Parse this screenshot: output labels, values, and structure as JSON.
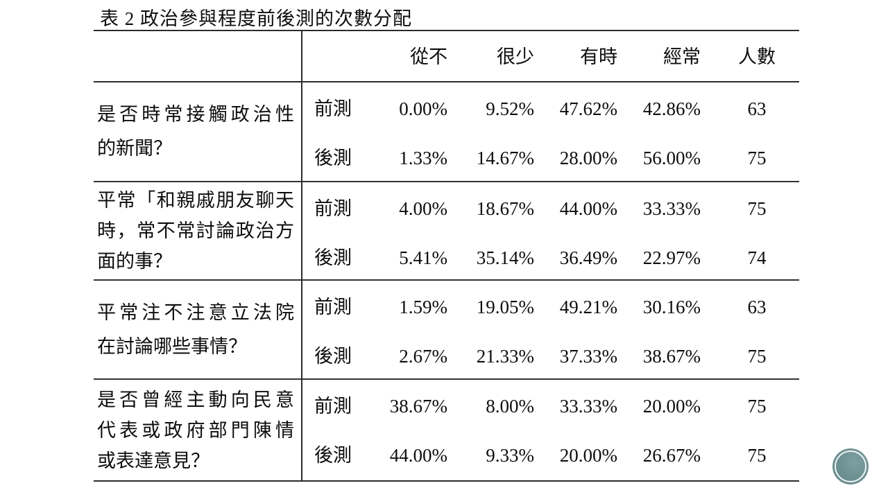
{
  "title": "表 2 政治參與程度前後測的次數分配",
  "table": {
    "columns": [
      "從不",
      "很少",
      "有時",
      "經常",
      "人數"
    ],
    "rows": [
      {
        "question": "是否時常接觸政治性的新聞？",
        "lines": [
          "是否時常接觸政治性",
          "的新聞？"
        ],
        "tests": [
          {
            "label": "前測",
            "values": [
              "0.00%",
              "9.52%",
              "47.62%",
              "42.86%"
            ],
            "count": "63"
          },
          {
            "label": "後測",
            "values": [
              "1.33%",
              "14.67%",
              "28.00%",
              "56.00%"
            ],
            "count": "75"
          }
        ]
      },
      {
        "question": "平常「和親戚朋友聊天時，常不常討論政治方面的事？",
        "lines": [
          "平常「和親戚朋友聊天",
          "時，常不常討論政治方",
          "面的事？"
        ],
        "tests": [
          {
            "label": "前測",
            "values": [
              "4.00%",
              "18.67%",
              "44.00%",
              "33.33%"
            ],
            "count": "75"
          },
          {
            "label": "後測",
            "values": [
              "5.41%",
              "35.14%",
              "36.49%",
              "22.97%"
            ],
            "count": "74"
          }
        ]
      },
      {
        "question": "平常注不注意立法院在討論哪些事情？",
        "lines": [
          "平常注不注意立法院",
          "在討論哪些事情？"
        ],
        "tests": [
          {
            "label": "前測",
            "values": [
              "1.59%",
              "19.05%",
              "49.21%",
              "30.16%"
            ],
            "count": "63"
          },
          {
            "label": "後測",
            "values": [
              "2.67%",
              "21.33%",
              "37.33%",
              "38.67%"
            ],
            "count": "75"
          }
        ]
      },
      {
        "question": "是否曾經主動向民意代表或政府部門陳情或表達意見？",
        "lines": [
          "是否曾經主動向民意",
          "代表或政府部門陳情",
          "或表達意見？"
        ],
        "tests": [
          {
            "label": "前測",
            "values": [
              "38.67%",
              "8.00%",
              "33.33%",
              "20.00%"
            ],
            "count": "75"
          },
          {
            "label": "後測",
            "values": [
              "44.00%",
              "9.33%",
              "20.00%",
              "26.67%"
            ],
            "count": "75"
          }
        ]
      }
    ]
  },
  "logo": {
    "name": "teal-circular-seal",
    "fill_color": "#6e9294",
    "ring_color": "#edf1f0"
  }
}
